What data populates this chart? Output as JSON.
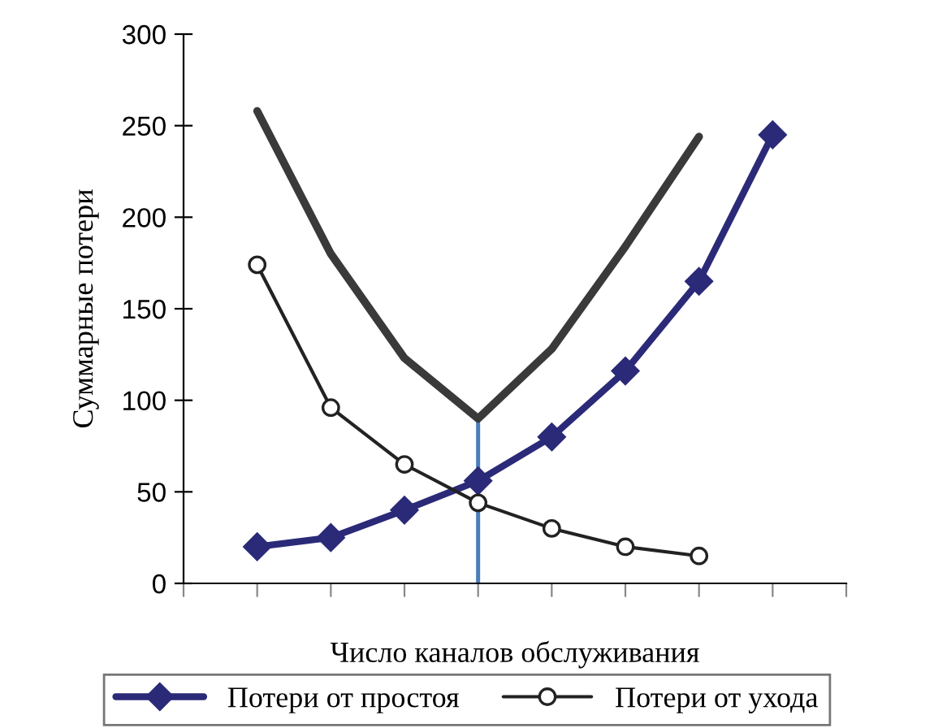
{
  "chart_data": {
    "type": "line",
    "xlabel": "Число каналов обслуживания",
    "ylabel": "Суммарные потери",
    "categories": [
      null,
      null,
      null,
      null,
      null,
      null,
      null,
      null
    ],
    "ylim": [
      0,
      300
    ],
    "yticks": [
      0,
      50,
      100,
      150,
      200,
      250,
      300
    ],
    "legend": "bottom",
    "series": [
      {
        "name": "Потери от простоя",
        "color": "#2b2a78",
        "marker": "diamond",
        "values": [
          20,
          25,
          40,
          56,
          80,
          116,
          165,
          245
        ]
      },
      {
        "name": "Потери от ухода",
        "color": "#222222",
        "marker": "circle",
        "values": [
          174,
          96,
          65,
          44,
          30,
          20,
          15,
          null
        ]
      },
      {
        "color": "#3a3a3a",
        "marker": "none",
        "values": [
          258,
          180,
          123,
          90,
          128,
          184,
          244,
          null
        ]
      }
    ]
  }
}
